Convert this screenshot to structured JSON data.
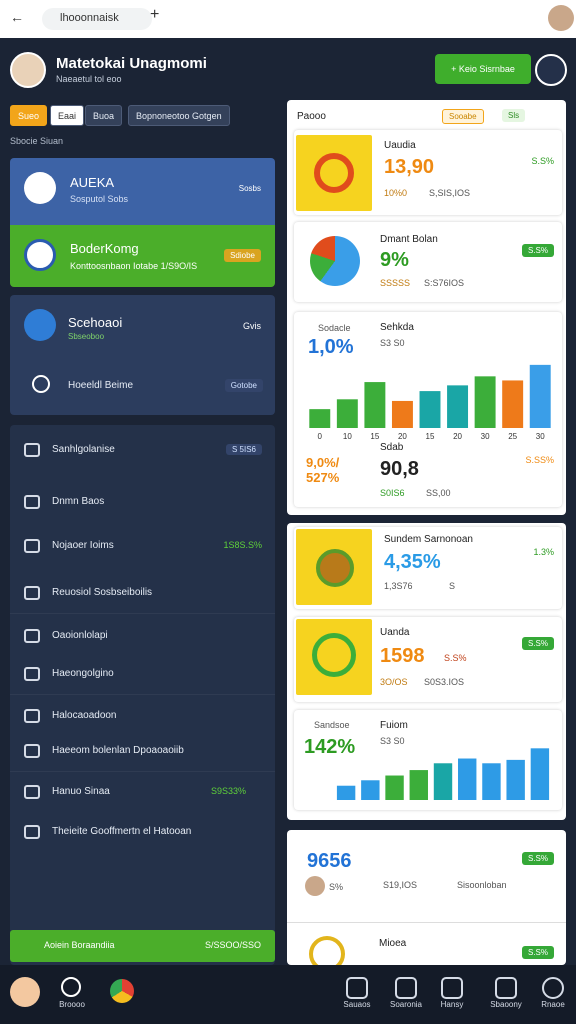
{
  "browser": {
    "url": "lhooonnaisk"
  },
  "header": {
    "title": "Matetokai Unagmomi",
    "subtitle": "Naeaetul tol eoo",
    "button": "Keio Sisrnbae"
  },
  "tabs": [
    "Sueo",
    "Eaai",
    "Buoa",
    "Bopnoneotoo Gotgen"
  ],
  "section_label": "Sbocie Siuan",
  "left_cards": [
    {
      "title": "AUEKA",
      "subtitle": "Sosputol Sobs",
      "badge": "Sosbs"
    },
    {
      "title": "BoderKomg",
      "subtitle": "Konttoosnbaon Iotabe 1/S9O/IS",
      "badge": "Sdiobe"
    },
    {
      "title": "Scehoaoi",
      "subtitle": "Sbseoboo",
      "badge": "Gvis"
    },
    {
      "title": "Hoeeldl Beime",
      "badge": "Gotobe"
    }
  ],
  "menu": [
    {
      "label": "Sanhlgolanise",
      "badge": "S 5IS6"
    },
    {
      "label": "Dnmn Baos"
    },
    {
      "label": "Nojaoer Ioims",
      "badge": "1S8S.S%"
    },
    {
      "label": "Reuosiol Sosbseiboilis"
    },
    {
      "label": "Oaoionlolapi"
    },
    {
      "label": "Haeongolgino"
    },
    {
      "label": "Halocaoadoon"
    },
    {
      "label": "Haeeom bolenlan Dpoaoaoiib"
    },
    {
      "label": "Hanuo Sinaa",
      "badge": "S9S33%"
    },
    {
      "label": "Theieite Gooffmertn el Hatooan"
    }
  ],
  "footer_bar": {
    "label": "Aoiein Boraandiia",
    "value": "S/SSOO/SSO"
  },
  "panel": {
    "title": "Paooo",
    "badge1": "Sooabe",
    "badge2": "Sls"
  },
  "items": [
    {
      "title": "Uaudia",
      "value": "13,90",
      "meta1": "10%0",
      "meta2": "S,SIS,IOS",
      "badge": "S.S%"
    },
    {
      "title": "Dmant Bolan",
      "value": "9%",
      "meta1": "SSSSS",
      "meta2": "S:S76IOS",
      "badge": "S.S%"
    },
    {
      "title": "Sdab",
      "value": "90,8",
      "side": "9,0%/ 527%",
      "meta1": "S0IS6",
      "meta2": "SS,00",
      "badge": "S.SS%"
    },
    {
      "title": "Sundem Sarnonoan",
      "value": "4,35%",
      "meta1": "1,3S76",
      "meta2": "S",
      "badge": "1.3%"
    },
    {
      "title": "Uanda",
      "value": "1598",
      "meta1": "S.S%",
      "meta2": "3O/OS",
      "meta3": "S0S3.IOS",
      "badge": "S.S%"
    },
    {
      "title": "Mioea",
      "badge": "S.S%"
    }
  ],
  "charts": [
    {
      "label": "Sodacle",
      "title": "Sehkda",
      "value": "1,0%",
      "sub": "S3 S0",
      "categories": [
        "0",
        "10",
        "15",
        "20",
        "15",
        "20",
        "30",
        "25",
        "30"
      ],
      "values": [
        23,
        35,
        56,
        33,
        45,
        52,
        63,
        58,
        77
      ],
      "colors": [
        "#3cae3a",
        "#3cae3a",
        "#3cae3a",
        "#ee7a1a",
        "#1aa6a6",
        "#1aa6a6",
        "#3cae3a",
        "#ee7a1a",
        "#3a9ee8"
      ],
      "ylim": [
        0,
        100
      ]
    },
    {
      "label": "Sandsoe",
      "title": "Fuiom",
      "value": "142%",
      "sub": "S3 S0",
      "values": [
        21,
        29,
        36,
        44,
        54,
        61,
        54,
        59,
        76
      ],
      "colors": [
        "#2e9be6",
        "#2e9be6",
        "#3cae3a",
        "#3cae3a",
        "#1aa6a6",
        "#2e9be6",
        "#2e9be6",
        "#2e9be6",
        "#2e9be6"
      ],
      "ylim": [
        0,
        100
      ]
    }
  ],
  "bottom": {
    "value": "9656",
    "badge": "S.S%",
    "meta1": "S19,IOS",
    "meta2": "Sisoonloban",
    "avatar_meta": "S%"
  },
  "nav": [
    "Broooo",
    "Sauaos",
    "Soaronia",
    "Hansy",
    "Sbaoony",
    "Rnaoe"
  ]
}
